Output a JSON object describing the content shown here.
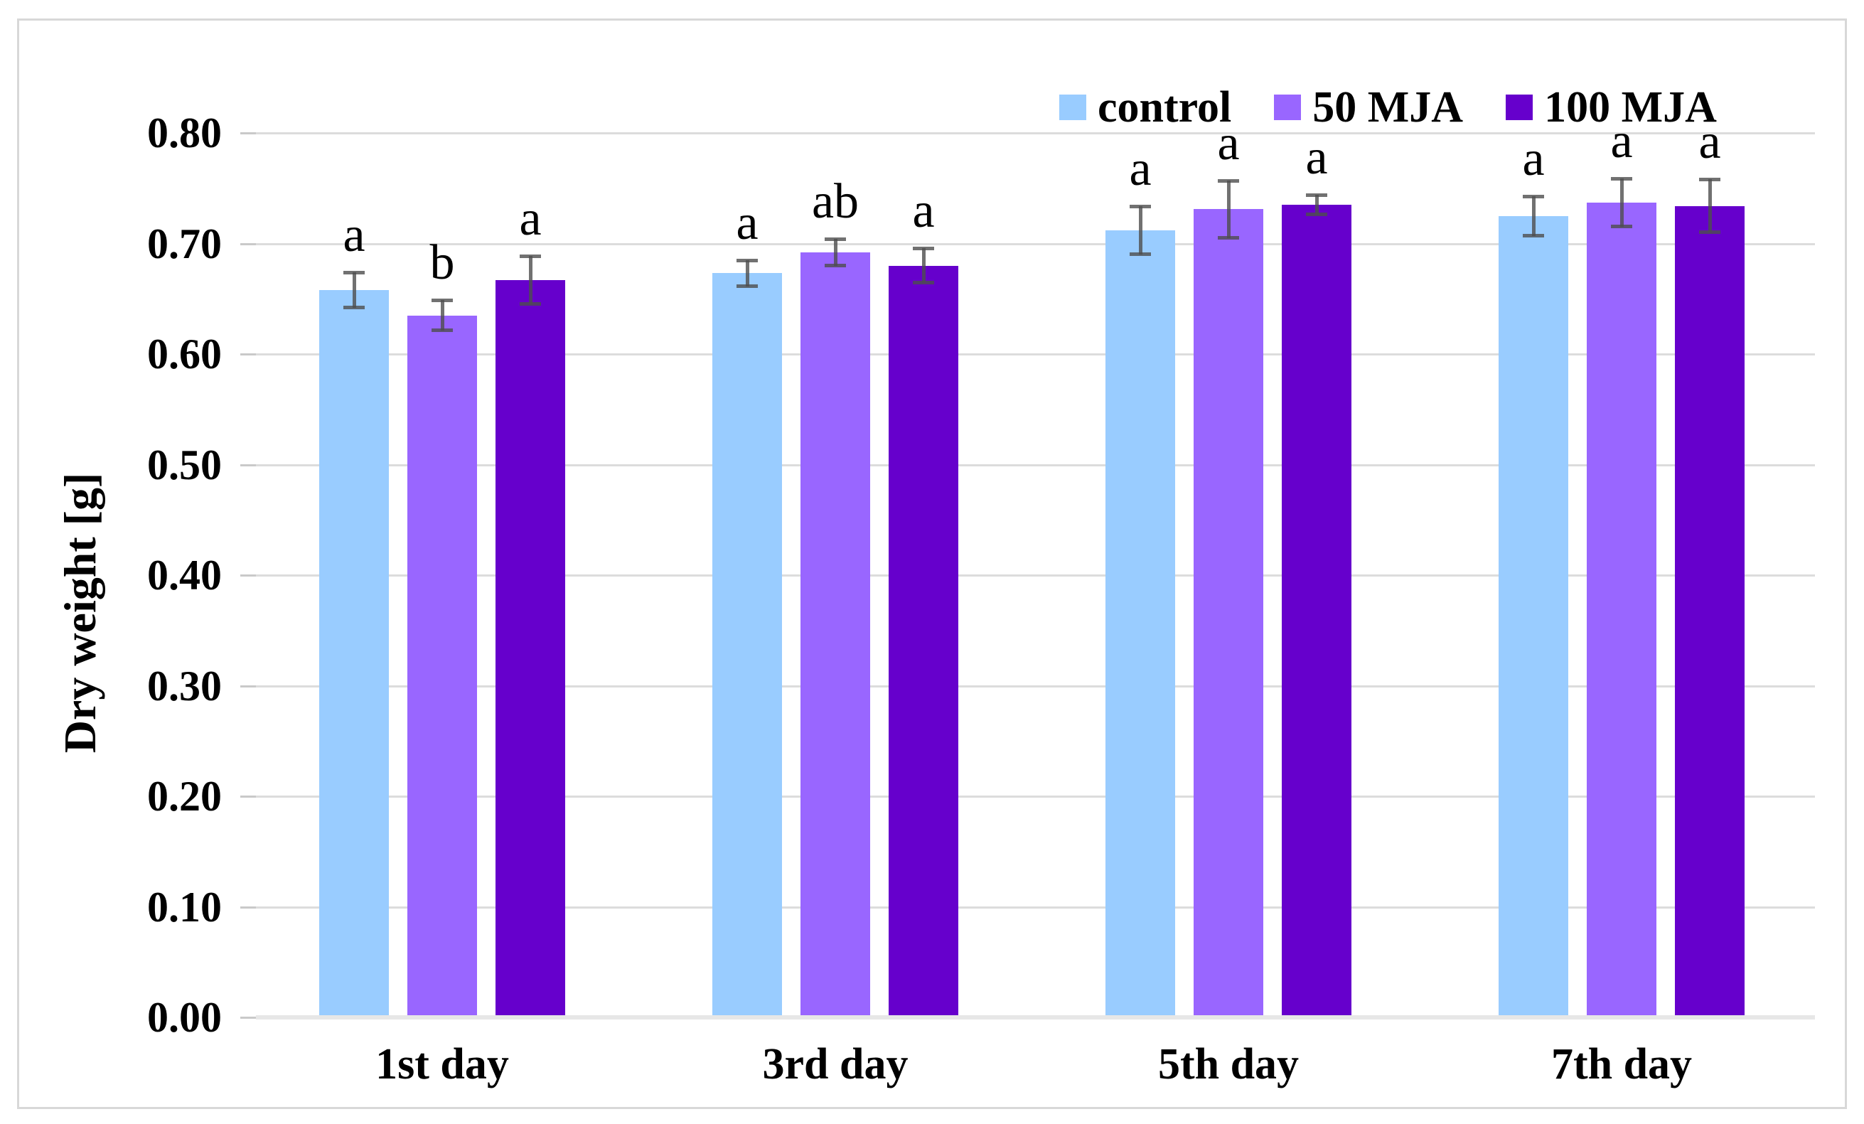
{
  "figure": {
    "background": "#FFFFFF",
    "border_color": "#D8D8D8"
  },
  "chart_data": {
    "type": "bar",
    "title": "",
    "xlabel": "",
    "ylabel": "Dry weight [g]",
    "categories": [
      "1st day",
      "3rd day",
      "5th day",
      "7th day"
    ],
    "series": [
      {
        "name": "control",
        "color": "#99CCFF",
        "values": [
          0.658,
          0.673,
          0.712,
          0.725
        ],
        "errors": [
          0.016,
          0.012,
          0.022,
          0.018
        ],
        "letters": [
          "a",
          "a",
          "a",
          "a"
        ]
      },
      {
        "name": "50 MJA",
        "color": "#9966FF",
        "values": [
          0.635,
          0.692,
          0.731,
          0.737
        ],
        "errors": [
          0.014,
          0.012,
          0.026,
          0.022
        ],
        "letters": [
          "b",
          "ab",
          "a",
          "a"
        ]
      },
      {
        "name": "100 MJA",
        "color": "#6600CC",
        "values": [
          0.667,
          0.68,
          0.735,
          0.734
        ],
        "errors": [
          0.022,
          0.016,
          0.009,
          0.024
        ],
        "letters": [
          "a",
          "a",
          "a",
          "a"
        ]
      }
    ],
    "ylim": [
      0.0,
      0.8
    ],
    "ytick_step": 0.1,
    "ytick_labels": [
      "0.00",
      "0.10",
      "0.20",
      "0.30",
      "0.40",
      "0.50",
      "0.60",
      "0.70",
      "0.80"
    ],
    "grid": true,
    "legend_position": "top-right",
    "gridline_color": "#DCDCDC",
    "axis_line_color": "#E7E7E7",
    "error_bar_color": "#4D4D4D"
  }
}
